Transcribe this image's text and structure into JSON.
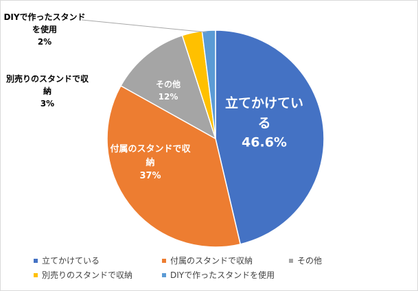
{
  "chart_data": {
    "type": "pie",
    "categories": [
      "立てかけている",
      "付属のスタンドで収納",
      "その他",
      "別売りのスタンドで収納",
      "DIYで作ったスタンドを使用"
    ],
    "values": [
      46.6,
      37,
      12,
      3,
      2
    ],
    "value_labels": [
      "46.6%",
      "37%",
      "12%",
      "3%",
      "2%"
    ],
    "colors": [
      "#4472c4",
      "#ed7d31",
      "#a5a5a5",
      "#ffc000",
      "#5b9bd5"
    ],
    "legend": "bottom"
  }
}
